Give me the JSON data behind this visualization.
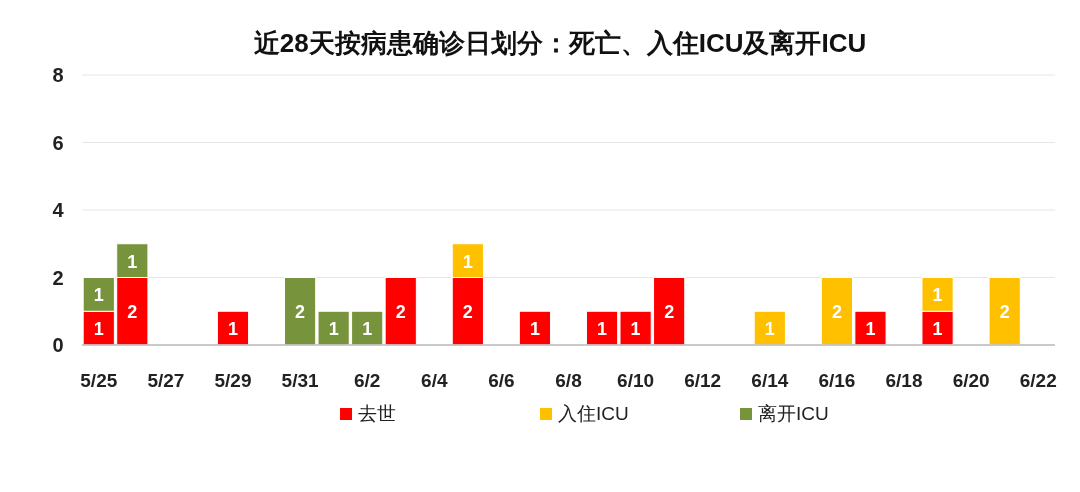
{
  "chart_data": {
    "type": "bar",
    "title": "近28天按病患确诊日划分：死亡、入住ICU及离开ICU",
    "stacked": true,
    "data_labels": true,
    "grid": "y",
    "legend": "bottom",
    "categories": [
      "5/25",
      null,
      "5/27",
      null,
      "5/29",
      null,
      "5/31",
      null,
      "6/2",
      null,
      "6/4",
      null,
      "6/6",
      null,
      "6/8",
      null,
      "6/10",
      null,
      "6/12",
      null,
      "6/14",
      null,
      "6/16",
      null,
      "6/18",
      null,
      "6/20",
      null,
      "6/22"
    ],
    "ylim": [
      0,
      8
    ],
    "yticks": [
      0,
      2,
      4,
      6,
      8
    ],
    "series": [
      {
        "name": "去世",
        "color": "#ff0000",
        "values": [
          1,
          2,
          null,
          null,
          1,
          null,
          null,
          null,
          null,
          2,
          null,
          2,
          null,
          1,
          null,
          1,
          1,
          2,
          null,
          null,
          null,
          null,
          null,
          1,
          null,
          1,
          null,
          null,
          null
        ]
      },
      {
        "name": "入住ICU",
        "color": "#ffc000",
        "values": [
          null,
          null,
          null,
          null,
          null,
          null,
          null,
          null,
          null,
          null,
          null,
          1,
          null,
          null,
          null,
          null,
          null,
          null,
          null,
          null,
          1,
          null,
          2,
          null,
          null,
          1,
          null,
          2,
          null
        ]
      },
      {
        "name": "离开ICU",
        "color": "#77933c",
        "values": [
          1,
          1,
          null,
          null,
          null,
          null,
          2,
          1,
          1,
          null,
          null,
          null,
          null,
          null,
          null,
          null,
          null,
          null,
          null,
          null,
          null,
          null,
          null,
          null,
          null,
          null,
          null,
          null,
          null
        ]
      }
    ]
  }
}
